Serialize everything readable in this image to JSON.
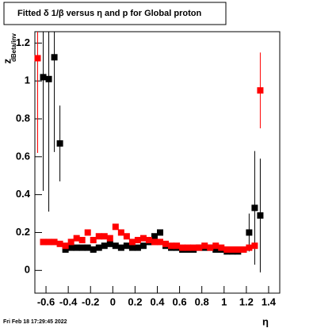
{
  "chart_data": {
    "type": "scatter",
    "title": "Fitted δ 1/β versus η and p for Global proton",
    "x_label": "η",
    "y_label": "z",
    "y_label_sub": "dBeta/inv",
    "footer": "Fri Feb 18 17:29:45 2022",
    "xlim": [
      -0.7,
      1.5
    ],
    "ylim": [
      -0.12,
      1.26
    ],
    "xticks": [
      -0.6,
      -0.4,
      -0.2,
      0,
      0.2,
      0.4,
      0.6,
      0.8,
      1,
      1.2,
      1.4
    ],
    "yticks": [
      0,
      0.2,
      0.4,
      0.6,
      0.8,
      1,
      1.2
    ],
    "series": [
      {
        "color": "#000000",
        "x": [
          -0.625,
          -0.575,
          -0.525,
          -0.475,
          -0.425,
          -0.375,
          -0.325,
          -0.275,
          -0.225,
          -0.175,
          -0.125,
          -0.075,
          -0.025,
          0.025,
          0.075,
          0.125,
          0.175,
          0.225,
          0.275,
          0.325,
          0.375,
          0.425,
          0.475,
          0.525,
          0.575,
          0.625,
          0.675,
          0.725,
          0.775,
          0.825,
          0.875,
          0.925,
          0.975,
          1.025,
          1.075,
          1.125,
          1.175,
          1.225,
          1.275,
          1.325
        ],
        "values": [
          1.02,
          1.01,
          1.125,
          0.67,
          0.11,
          0.12,
          0.12,
          0.12,
          0.12,
          0.11,
          0.12,
          0.13,
          0.14,
          0.13,
          0.12,
          0.13,
          0.12,
          0.12,
          0.13,
          0.15,
          0.18,
          0.2,
          0.13,
          0.12,
          0.12,
          0.11,
          0.11,
          0.11,
          0.12,
          0.12,
          0.12,
          0.11,
          0.11,
          0.1,
          0.1,
          0.1,
          0.11,
          0.2,
          0.33,
          0.29
        ],
        "errors": [
          0.6,
          0.7,
          0.5,
          0.2,
          0.01,
          0.01,
          0.01,
          0.01,
          0.01,
          0.01,
          0.01,
          0.01,
          0.01,
          0.01,
          0.01,
          0.01,
          0.01,
          0.01,
          0.01,
          0.01,
          0.01,
          0.01,
          0.01,
          0.01,
          0.01,
          0.01,
          0.01,
          0.01,
          0.01,
          0.01,
          0.01,
          0.01,
          0.01,
          0.01,
          0.01,
          0.01,
          0.01,
          0.1,
          0.3,
          0.3
        ]
      },
      {
        "color": "#ff0000",
        "x": [
          -0.675,
          -0.625,
          -0.575,
          -0.525,
          -0.475,
          -0.425,
          -0.375,
          -0.325,
          -0.275,
          -0.225,
          -0.175,
          -0.125,
          -0.075,
          -0.025,
          0.025,
          0.075,
          0.125,
          0.175,
          0.225,
          0.275,
          0.325,
          0.375,
          0.425,
          0.475,
          0.525,
          0.575,
          0.625,
          0.675,
          0.725,
          0.775,
          0.825,
          0.875,
          0.925,
          0.975,
          1.025,
          1.075,
          1.125,
          1.175,
          1.225,
          1.275,
          1.325
        ],
        "values": [
          1.12,
          0.15,
          0.15,
          0.15,
          0.14,
          0.13,
          0.15,
          0.17,
          0.16,
          0.2,
          0.16,
          0.18,
          0.18,
          0.17,
          0.23,
          0.2,
          0.18,
          0.15,
          0.16,
          0.17,
          0.16,
          0.15,
          0.15,
          0.14,
          0.13,
          0.13,
          0.12,
          0.12,
          0.12,
          0.12,
          0.13,
          0.12,
          0.13,
          0.12,
          0.11,
          0.11,
          0.11,
          0.11,
          0.12,
          0.13,
          0.95
        ],
        "errors": [
          0.5,
          0.01,
          0.01,
          0.01,
          0.01,
          0.01,
          0.01,
          0.01,
          0.01,
          0.01,
          0.01,
          0.01,
          0.01,
          0.01,
          0.01,
          0.01,
          0.01,
          0.01,
          0.01,
          0.01,
          0.01,
          0.01,
          0.01,
          0.01,
          0.01,
          0.01,
          0.01,
          0.01,
          0.01,
          0.01,
          0.01,
          0.01,
          0.01,
          0.01,
          0.01,
          0.01,
          0.01,
          0.01,
          0.01,
          0.01,
          0.2
        ]
      }
    ]
  }
}
